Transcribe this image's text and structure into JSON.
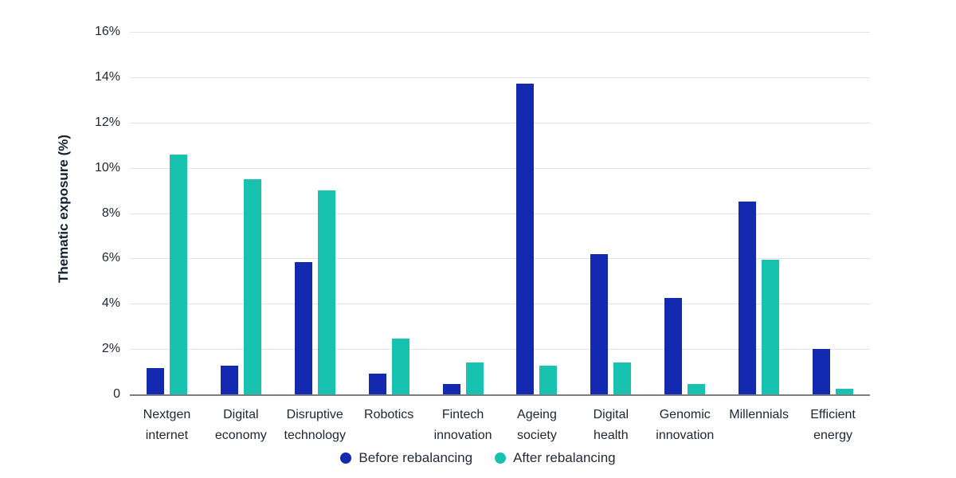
{
  "chart_data": {
    "type": "bar",
    "categories": [
      "Nextgen internet",
      "Digital economy",
      "Disruptive technology",
      "Robotics",
      "Fintech innovation",
      "Ageing society",
      "Digital health",
      "Genomic innovation",
      "Millennials",
      "Efficient energy"
    ],
    "series": [
      {
        "name": "Before rebalancing",
        "color": "#1329b0",
        "values": [
          1.15,
          1.25,
          5.85,
          0.9,
          0.45,
          13.7,
          6.2,
          4.25,
          8.5,
          2.0
        ]
      },
      {
        "name": "After rebalancing",
        "color": "#17c3b0",
        "values": [
          10.6,
          9.5,
          9.0,
          2.45,
          1.4,
          1.25,
          1.4,
          0.45,
          5.95,
          0.25
        ]
      }
    ],
    "title": "",
    "xlabel": "",
    "ylabel": "Thematic exposure (%)",
    "ylim": [
      0,
      16
    ],
    "yticks": [
      16,
      14,
      12,
      10,
      8,
      6,
      4,
      2,
      0
    ],
    "ytick_labels": [
      "16%",
      "14%",
      "12%",
      "10%",
      "8%",
      "6%",
      "4%",
      "2%",
      "0"
    ],
    "grid": true,
    "legend_position": "bottom"
  },
  "colors": {
    "background": "#ffffff",
    "gridline": "#e3e3e3",
    "axis_line": "#7b7e81",
    "text": "#202733"
  }
}
